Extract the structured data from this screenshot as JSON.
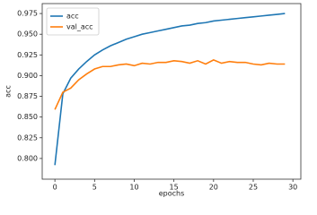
{
  "chart_data": {
    "type": "line",
    "x": [
      0,
      1,
      2,
      3,
      4,
      5,
      6,
      7,
      8,
      9,
      10,
      11,
      12,
      13,
      14,
      15,
      16,
      17,
      18,
      19,
      20,
      21,
      22,
      23,
      24,
      25,
      26,
      27,
      28,
      29
    ],
    "series": [
      {
        "name": "acc",
        "color": "#1f77b4",
        "values": [
          0.792,
          0.878,
          0.897,
          0.908,
          0.917,
          0.925,
          0.931,
          0.936,
          0.94,
          0.944,
          0.947,
          0.95,
          0.952,
          0.954,
          0.956,
          0.958,
          0.96,
          0.961,
          0.963,
          0.964,
          0.966,
          0.967,
          0.968,
          0.969,
          0.97,
          0.971,
          0.972,
          0.973,
          0.974,
          0.975
        ]
      },
      {
        "name": "val_acc",
        "color": "#ff7f0e",
        "values": [
          0.859,
          0.88,
          0.885,
          0.895,
          0.902,
          0.908,
          0.911,
          0.911,
          0.913,
          0.914,
          0.912,
          0.915,
          0.914,
          0.916,
          0.916,
          0.918,
          0.917,
          0.915,
          0.918,
          0.914,
          0.919,
          0.915,
          0.917,
          0.916,
          0.916,
          0.914,
          0.913,
          0.915,
          0.914,
          0.914
        ]
      }
    ],
    "xlabel": "epochs",
    "ylabel": "acc",
    "xlim": [
      -1.6,
      31.0
    ],
    "xticks": [
      0,
      5,
      10,
      15,
      20,
      25,
      30
    ],
    "ylim": [
      0.775,
      0.987
    ],
    "yticks": [
      {
        "value": 0.8,
        "label": "0.800"
      },
      {
        "value": 0.825,
        "label": "0.825"
      },
      {
        "value": 0.85,
        "label": "0.850"
      },
      {
        "value": 0.875,
        "label": "0.875"
      },
      {
        "value": 0.9,
        "label": "0.900"
      },
      {
        "value": 0.925,
        "label": "0.925"
      },
      {
        "value": 0.95,
        "label": "0.950"
      },
      {
        "value": 0.975,
        "label": "0.975"
      }
    ],
    "grid": false,
    "legend": "upper left"
  }
}
